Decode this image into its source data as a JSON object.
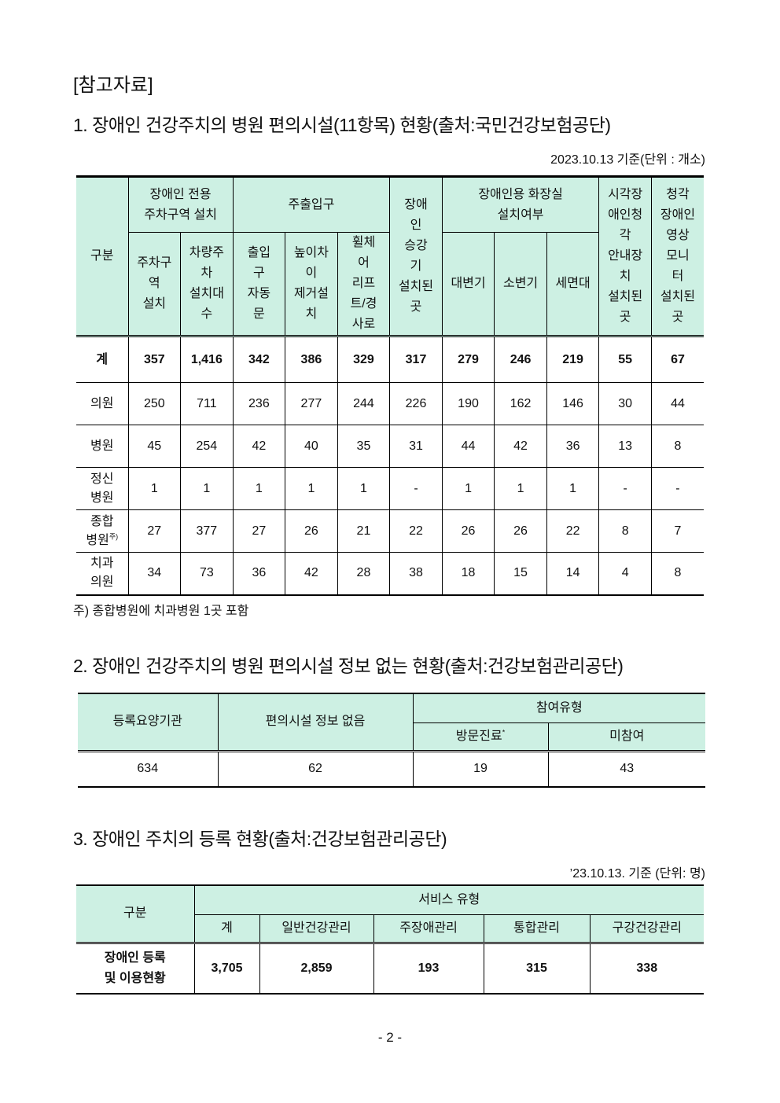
{
  "ref_title": "[참고자료]",
  "s1": {
    "title": "1. 장애인 건강주치의 병원 편의시설(11항목) 현황(출처:국민건강보험공단)",
    "unit": "2023.10.13 기준(단위 : 개소)",
    "headers": {
      "category": "구분",
      "parking": "장애인 전용\n주차구역 설치",
      "entrance": "주출입구",
      "elevator": "장애\n인\n승강\n기\n설치된\n곳",
      "toilet": "장애인용 화장실\n설치여부",
      "visual": "시각장\n애인청\n각\n안내장\n치\n설치된\n곳",
      "hearing": "청각\n장애인\n영상\n모니\n터\n설치된\n곳",
      "sub": [
        "주차구\n역\n설치",
        "차량주\n차\n설치대\n수",
        "출입\n구\n자동\n문",
        "높이차\n이\n제거설\n치",
        "휠체\n어\n리프\n트/경\n사로",
        "대변기",
        "소변기",
        "세면대"
      ]
    },
    "rows": [
      {
        "label": "계",
        "values": [
          "357",
          "1,416",
          "342",
          "386",
          "329",
          "317",
          "279",
          "246",
          "219",
          "55",
          "67"
        ]
      },
      {
        "label": "의원",
        "values": [
          "250",
          "711",
          "236",
          "277",
          "244",
          "226",
          "190",
          "162",
          "146",
          "30",
          "44"
        ]
      },
      {
        "label": "병원",
        "values": [
          "45",
          "254",
          "42",
          "40",
          "35",
          "31",
          "44",
          "42",
          "36",
          "13",
          "8"
        ]
      },
      {
        "label": "정신\n병원",
        "values": [
          "1",
          "1",
          "1",
          "1",
          "1",
          "-",
          "1",
          "1",
          "1",
          "-",
          "-"
        ]
      },
      {
        "label": "종합\n병원",
        "sup": "주)",
        "values": [
          "27",
          "377",
          "27",
          "26",
          "21",
          "22",
          "26",
          "26",
          "22",
          "8",
          "7"
        ]
      },
      {
        "label": "치과\n의원",
        "values": [
          "34",
          "73",
          "36",
          "42",
          "28",
          "38",
          "18",
          "15",
          "14",
          "4",
          "8"
        ]
      }
    ],
    "note": "주) 종합병원에 치과병원 1곳 포함"
  },
  "s2": {
    "title": "2. 장애인 건강주치의 병원 편의시설 정보 없는 현황(출처:건강보험관리공단)",
    "headers": {
      "registered": "등록요양기관",
      "no_info": "편의시설 정보 없음",
      "participation": "참여유형",
      "visit": "방문진료",
      "visit_mark": "*",
      "non": "미참여"
    },
    "values": [
      "634",
      "62",
      "19",
      "43"
    ]
  },
  "s3": {
    "title": "3. 장애인 주치의 등록 현황(출처:건강보험관리공단)",
    "unit": "’23.10.13. 기준 (단위: 명)",
    "headers": {
      "category": "구분",
      "service": "서비스 유형",
      "sub": [
        "계",
        "일반건강관리",
        "주장애관리",
        "통합관리",
        "구강건강관리"
      ]
    },
    "row_label": "장애인 등록\n및 이용현황",
    "values": [
      "3,705",
      "2,859",
      "193",
      "315",
      "338"
    ]
  },
  "page_number": "- 2 -"
}
